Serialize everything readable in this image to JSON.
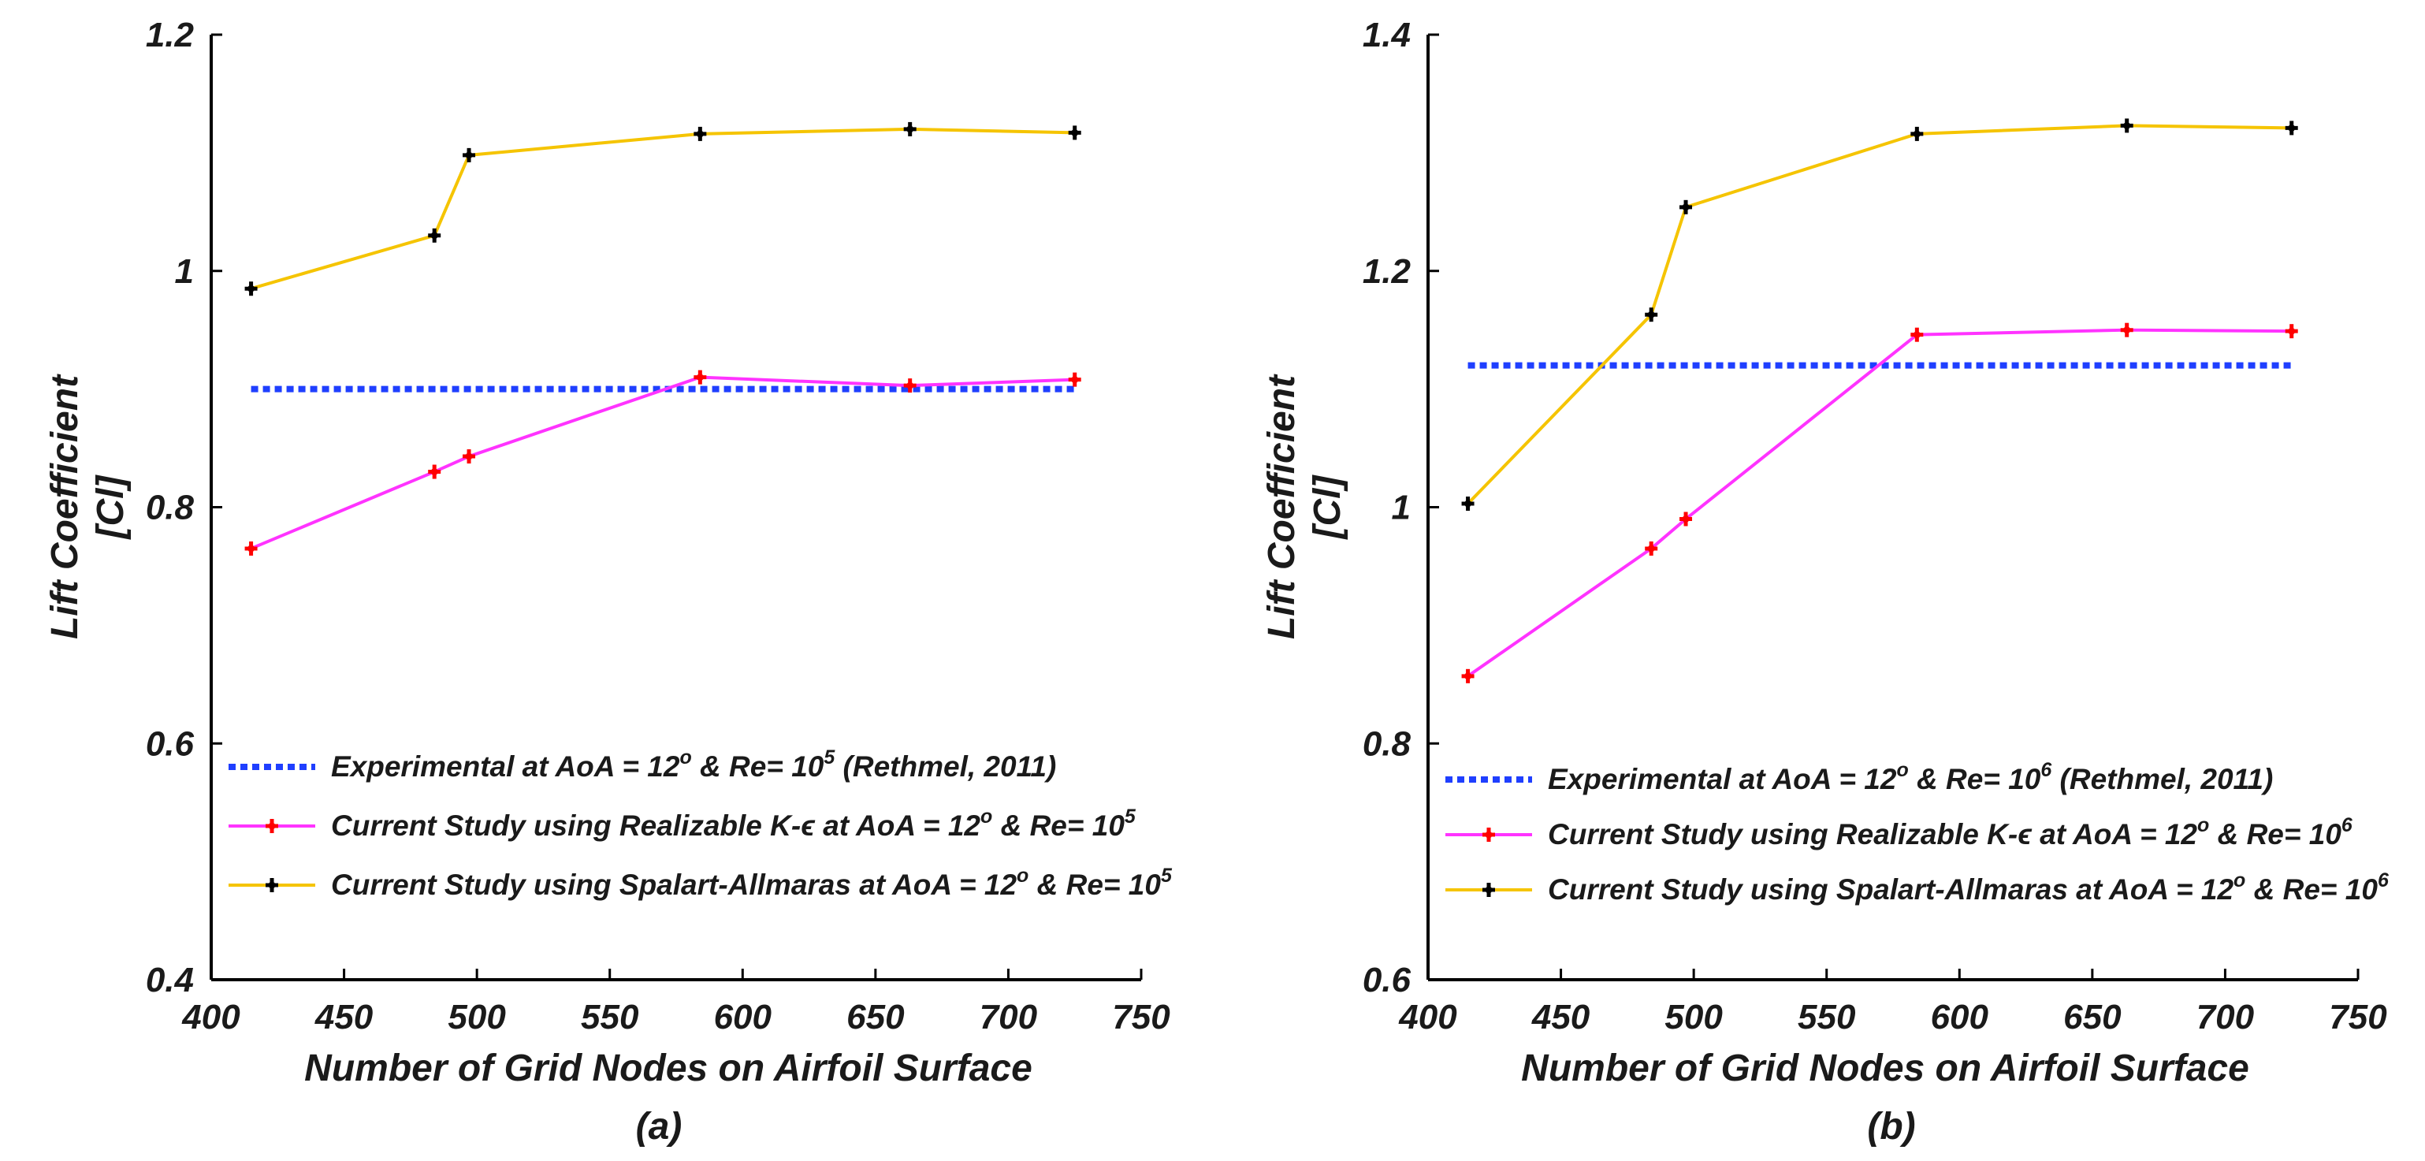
{
  "chart_data": [
    {
      "type": "line",
      "panel": "a",
      "caption": "(a)",
      "xlabel": "Number of Grid Nodes on Airfoil Surface",
      "ylabel": [
        "Lift Coefficient",
        "[Cl]"
      ],
      "xlim": [
        400,
        750
      ],
      "ylim": [
        0.4,
        1.2
      ],
      "xticks": [
        400,
        450,
        500,
        550,
        600,
        650,
        700,
        750
      ],
      "yticks": [
        0.4,
        0.6,
        0.8,
        1.0,
        1.2
      ],
      "xtick_labels": [
        "400",
        "450",
        "500",
        "550",
        "600",
        "650",
        "700",
        "750"
      ],
      "ytick_labels": [
        "0.4",
        "0.6",
        "0.8",
        "1",
        "1.2"
      ],
      "legend_position": "bottom",
      "series": [
        {
          "name": "Experimental at AoA = 12o & Re= 105 (Rethmel, 2011)",
          "legend_parts": [
            "Experimental at AoA = 12",
            "o",
            " & Re= 10",
            "5",
            " (Rethmel, 2011)"
          ],
          "style": "dotted",
          "color": "#1f3fff",
          "marker": "none",
          "x": [
            415,
            725
          ],
          "y": [
            0.9,
            0.9
          ]
        },
        {
          "name": "Current Study using Realizable K-ε at AoA = 12o & Re= 105",
          "legend_parts": [
            "Current Study using Realizable K-",
            "ϵ",
            " at AoA = 12",
            "o",
            " & Re= 10",
            "5"
          ],
          "style": "solid",
          "color": "#ff33ff",
          "marker_color": "#ff0000",
          "marker": "plus",
          "x": [
            415,
            484,
            497,
            584,
            663,
            725
          ],
          "y": [
            0.765,
            0.83,
            0.843,
            0.91,
            0.903,
            0.908
          ]
        },
        {
          "name": "Current Study using Spalart-Allmaras at AoA = 12o & Re= 105",
          "legend_parts": [
            "Current Study using Spalart-Allmaras at AoA = 12",
            "o",
            " & Re= 10",
            "5"
          ],
          "style": "solid",
          "color": "#f5c400",
          "marker_color": "#000000",
          "marker": "plus",
          "x": [
            415,
            484,
            497,
            584,
            663,
            725
          ],
          "y": [
            0.985,
            1.03,
            1.098,
            1.116,
            1.12,
            1.117
          ]
        }
      ]
    },
    {
      "type": "line",
      "panel": "b",
      "caption": "(b)",
      "xlabel": "Number of Grid Nodes on Airfoil Surface",
      "ylabel": [
        "Lift Coefficient",
        "[Cl]"
      ],
      "xlim": [
        400,
        750
      ],
      "ylim": [
        0.6,
        1.4
      ],
      "xticks": [
        400,
        450,
        500,
        550,
        600,
        650,
        700,
        750
      ],
      "yticks": [
        0.6,
        0.8,
        1.0,
        1.2,
        1.4
      ],
      "xtick_labels": [
        "400",
        "450",
        "500",
        "550",
        "600",
        "650",
        "700",
        "750"
      ],
      "ytick_labels": [
        "0.6",
        "0.8",
        "1",
        "1.2",
        "1.4"
      ],
      "legend_position": "bottom",
      "series": [
        {
          "name": "Experimental at AoA = 12o & Re= 106 (Rethmel, 2011)",
          "legend_parts": [
            "Experimental at AoA = 12",
            "o",
            " & Re= 10",
            "6",
            " (Rethmel, 2011)"
          ],
          "style": "dotted",
          "color": "#1f3fff",
          "marker": "none",
          "x": [
            415,
            725
          ],
          "y": [
            1.12,
            1.12
          ]
        },
        {
          "name": "Current Study using Realizable K-ε at AoA = 12o & Re= 106",
          "legend_parts": [
            "Current Study using Realizable K-",
            "ϵ",
            " at AoA = 12",
            "o",
            " & Re= 10",
            "6"
          ],
          "style": "solid",
          "color": "#ff33ff",
          "marker_color": "#ff0000",
          "marker": "plus",
          "x": [
            415,
            484,
            497,
            584,
            663,
            725
          ],
          "y": [
            0.857,
            0.965,
            0.99,
            1.146,
            1.15,
            1.149
          ]
        },
        {
          "name": "Current Study using Spalart-Allmaras at AoA = 12o & Re= 106",
          "legend_parts": [
            "Current Study using Spalart-Allmaras at AoA = 12",
            "o",
            " & Re= 10",
            "6"
          ],
          "style": "solid",
          "color": "#f5c400",
          "marker_color": "#000000",
          "marker": "plus",
          "x": [
            415,
            484,
            497,
            584,
            663,
            725
          ],
          "y": [
            1.003,
            1.163,
            1.254,
            1.316,
            1.323,
            1.321
          ]
        }
      ]
    }
  ]
}
